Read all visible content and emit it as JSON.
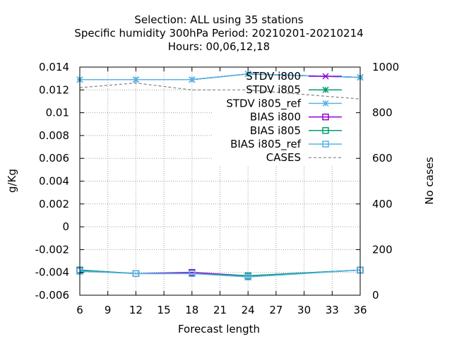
{
  "chart_data": {
    "type": "line",
    "title_lines": [
      "Selection: ALL using    35 stations",
      "Specific humidity 300hPa   Period: 20210201-20210214",
      "Hours:  00,06,12,18"
    ],
    "xlabel": "Forecast length",
    "ylabel": "g/Kg",
    "y2label": "No cases",
    "x": [
      6,
      12,
      18,
      24,
      36
    ],
    "xlim": [
      6,
      36
    ],
    "xticks": [
      "6",
      "9",
      "12",
      "15",
      "18",
      "21",
      "24",
      "27",
      "30",
      "33",
      "36"
    ],
    "ylim": [
      -0.006,
      0.014
    ],
    "yticks": [
      "-0.006",
      "-0.004",
      "-0.002",
      "0",
      "0.002",
      "0.004",
      "0.006",
      "0.008",
      "0.01",
      "0.012",
      "0.014"
    ],
    "y2lim": [
      0,
      1000
    ],
    "y2ticks": [
      "0",
      "200",
      "400",
      "600",
      "800",
      "1000"
    ],
    "grid": true,
    "legend_position": "top-right",
    "series": [
      {
        "name": "STDV i800",
        "color": "#9400d3",
        "marker": "x-cross",
        "axis": "y",
        "values": [
          0.0129,
          0.0129,
          0.0129,
          0.0134,
          0.0131
        ]
      },
      {
        "name": "STDV i805",
        "color": "#009e73",
        "marker": "star",
        "axis": "y",
        "values": [
          0.0129,
          0.0129,
          0.0129,
          0.0134,
          0.0131
        ]
      },
      {
        "name": "STDV i805_ref",
        "color": "#56b4e9",
        "marker": "star",
        "axis": "y",
        "values": [
          0.0129,
          0.0129,
          0.0129,
          0.0134,
          0.0131
        ]
      },
      {
        "name": "BIAS i800",
        "color": "#9400d3",
        "marker": "square",
        "axis": "y",
        "values": [
          -0.0038,
          -0.0041,
          -0.004,
          -0.0043,
          -0.0038
        ]
      },
      {
        "name": "BIAS i805",
        "color": "#009e73",
        "marker": "square",
        "axis": "y",
        "values": [
          -0.0038,
          -0.0041,
          -0.0041,
          -0.0043,
          -0.0038
        ]
      },
      {
        "name": "BIAS i805_ref",
        "color": "#56b4e9",
        "marker": "square",
        "axis": "y",
        "values": [
          -0.0039,
          -0.0041,
          -0.0041,
          -0.0044,
          -0.0038
        ]
      },
      {
        "name": "CASES",
        "color": "#808080",
        "marker": "none",
        "dashed": true,
        "axis": "y2",
        "values": [
          910,
          930,
          900,
          900,
          860
        ]
      }
    ]
  }
}
